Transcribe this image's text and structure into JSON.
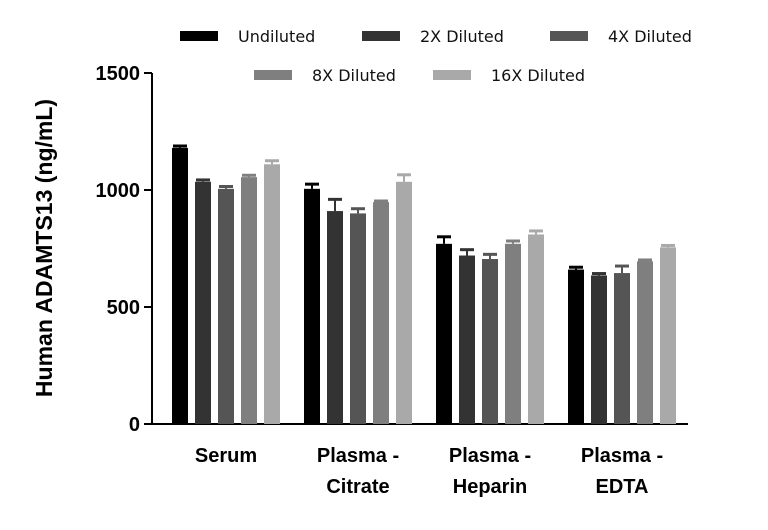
{
  "chart_data": {
    "type": "bar",
    "title": "",
    "xlabel": "",
    "ylabel": "Human ADAMTS13 (ng/mL)",
    "ylim": [
      0,
      1500
    ],
    "yticks": [
      "0",
      "500",
      "1000",
      "1500"
    ],
    "ytick_values": [
      0,
      500,
      1000,
      1500
    ],
    "categories": [
      [
        "Serum"
      ],
      [
        "Plasma -",
        "Citrate"
      ],
      [
        "Plasma -",
        "Heparin"
      ],
      [
        "Plasma -",
        "EDTA"
      ]
    ],
    "legend_position": "top",
    "grid": false,
    "error_bars": true,
    "series": [
      {
        "name": "Undiluted",
        "color": "#000000",
        "values": [
          1180,
          1005,
          770,
          660
        ],
        "errors": [
          8,
          20,
          30,
          10
        ]
      },
      {
        "name": "2X Diluted",
        "color": "#333333",
        "values": [
          1035,
          910,
          720,
          635
        ],
        "errors": [
          8,
          50,
          25,
          8
        ]
      },
      {
        "name": "4X Diluted",
        "color": "#555555",
        "values": [
          1005,
          900,
          705,
          645
        ],
        "errors": [
          10,
          20,
          20,
          30
        ]
      },
      {
        "name": "8X Diluted",
        "color": "#7f7f7f",
        "values": [
          1055,
          948,
          770,
          695
        ],
        "errors": [
          8,
          5,
          12,
          6
        ]
      },
      {
        "name": "16X Diluted",
        "color": "#a9a9a9",
        "values": [
          1110,
          1035,
          810,
          755
        ],
        "errors": [
          15,
          30,
          15,
          8
        ]
      }
    ]
  }
}
